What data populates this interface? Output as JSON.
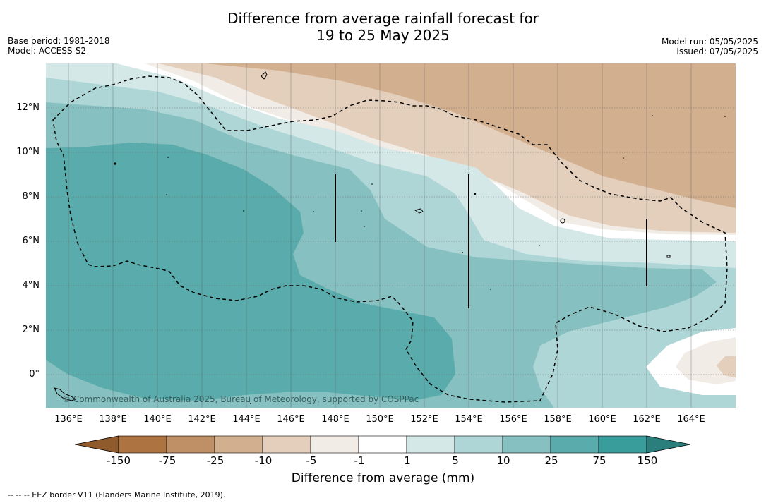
{
  "title_line1": "Difference from average rainfall forecast for",
  "title_line2": "19 to 25 May 2025",
  "base_period": "Base period: 1981-2018",
  "model": "Model: ACCESS-S2",
  "model_run": "Model run: 05/05/2025",
  "issued": "Issued: 07/05/2025",
  "copyright": "© Commonwealth of Australia 2025, Bureau of Meteorology, supported by COSPPac",
  "lat_labels": [
    "12°N",
    "10°N",
    "8°N",
    "6°N",
    "4°N",
    "2°N",
    "0°"
  ],
  "lon_labels": [
    "136°E",
    "138°E",
    "140°E",
    "142°E",
    "144°E",
    "146°E",
    "148°E",
    "150°E",
    "152°E",
    "154°E",
    "156°E",
    "158°E",
    "160°E",
    "162°E",
    "164°E"
  ],
  "colorbar": {
    "label": "Difference from average (mm)",
    "ticks": [
      "-150",
      "-75",
      "-25",
      "-10",
      "-5",
      "-1",
      "1",
      "5",
      "10",
      "25",
      "75",
      "150"
    ],
    "colors": [
      "#8f5a2c",
      "#ad7442",
      "#bf8f66",
      "#d2af8e",
      "#e3cfbb",
      "#f2ece6",
      "#ffffff",
      "#d5e8e8",
      "#aed6d6",
      "#86c0c0",
      "#5aabab",
      "#389d9b",
      "#2a7f7d"
    ]
  },
  "footnote": "--  --  -- EEZ border V11 (Flanders Marine Institute, 2019)."
}
